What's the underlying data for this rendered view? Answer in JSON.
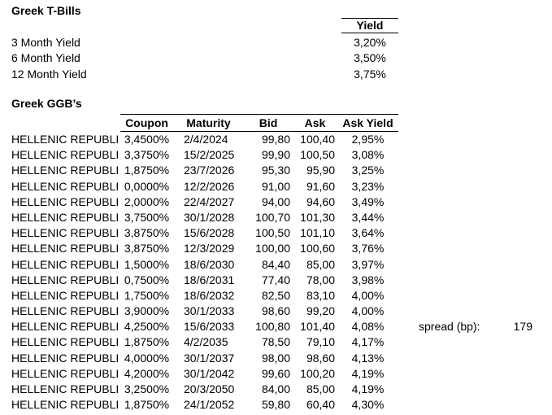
{
  "colors": {
    "text": "#000000",
    "background": "#ffffff",
    "border": "#000000"
  },
  "tbills": {
    "title": "Greek T-Bills",
    "yield_header": "Yield",
    "rows": [
      {
        "label": "3 Month Yield",
        "value": "3,20%"
      },
      {
        "label": "6 Month Yield",
        "value": "3,50%"
      },
      {
        "label": "12 Month Yield",
        "value": "3,75%"
      }
    ]
  },
  "ggbs": {
    "title": "Greek GGB’s",
    "columns": {
      "name": "",
      "coupon": "Coupon",
      "maturity": "Maturity",
      "bid": "Bid",
      "ask": "Ask",
      "ask_yield": "Ask Yield"
    },
    "rows": [
      {
        "name": "HELLENIC REPUBLI",
        "coupon": "3,4500%",
        "maturity": "2/4/2024",
        "bid": "99,80",
        "ask": "100,40",
        "ask_yield": "2,95%"
      },
      {
        "name": "HELLENIC REPUBLI",
        "coupon": "3,3750%",
        "maturity": "15/2/2025",
        "bid": "99,90",
        "ask": "100,50",
        "ask_yield": "3,08%"
      },
      {
        "name": "HELLENIC REPUBLI",
        "coupon": "1,8750%",
        "maturity": "23/7/2026",
        "bid": "95,30",
        "ask": "95,90",
        "ask_yield": "3,25%"
      },
      {
        "name": "HELLENIC REPUBLI",
        "coupon": "0,0000%",
        "maturity": "12/2/2026",
        "bid": "91,00",
        "ask": "91,60",
        "ask_yield": "3,23%"
      },
      {
        "name": "HELLENIC REPUBLI",
        "coupon": "2,0000%",
        "maturity": "22/4/2027",
        "bid": "94,00",
        "ask": "94,60",
        "ask_yield": "3,49%"
      },
      {
        "name": "HELLENIC REPUBLI",
        "coupon": "3,7500%",
        "maturity": "30/1/2028",
        "bid": "100,70",
        "ask": "101,30",
        "ask_yield": "3,44%"
      },
      {
        "name": "HELLENIC REPUBLI",
        "coupon": "3,8750%",
        "maturity": "15/6/2028",
        "bid": "100,50",
        "ask": "101,10",
        "ask_yield": "3,64%"
      },
      {
        "name": "HELLENIC REPUBLI",
        "coupon": "3,8750%",
        "maturity": "12/3/2029",
        "bid": "100,00",
        "ask": "100,60",
        "ask_yield": "3,76%"
      },
      {
        "name": "HELLENIC REPUBLI",
        "coupon": "1,5000%",
        "maturity": "18/6/2030",
        "bid": "84,40",
        "ask": "85,00",
        "ask_yield": "3,97%"
      },
      {
        "name": "HELLENIC REPUBLI",
        "coupon": "0,7500%",
        "maturity": "18/6/2031",
        "bid": "77,40",
        "ask": "78,00",
        "ask_yield": "3,98%"
      },
      {
        "name": "HELLENIC REPUBLI",
        "coupon": "1,7500%",
        "maturity": "18/6/2032",
        "bid": "82,50",
        "ask": "83,10",
        "ask_yield": "4,00%"
      },
      {
        "name": "HELLENIC REPUBLI",
        "coupon": "3,9000%",
        "maturity": "30/1/2033",
        "bid": "98,60",
        "ask": "99,20",
        "ask_yield": "4,00%"
      },
      {
        "name": "HELLENIC REPUBLI",
        "coupon": "4,2500%",
        "maturity": "15/6/2033",
        "bid": "100,80",
        "ask": "101,40",
        "ask_yield": "4,08%"
      },
      {
        "name": "HELLENIC REPUBLI",
        "coupon": "1,8750%",
        "maturity": "4/2/2035",
        "bid": "78,50",
        "ask": "79,10",
        "ask_yield": "4,17%"
      },
      {
        "name": "HELLENIC REPUBLI",
        "coupon": "4,0000%",
        "maturity": "30/1/2037",
        "bid": "98,00",
        "ask": "98,60",
        "ask_yield": "4,13%"
      },
      {
        "name": "HELLENIC REPUBLI",
        "coupon": "4,2000%",
        "maturity": "30/1/2042",
        "bid": "99,60",
        "ask": "100,20",
        "ask_yield": "4,19%"
      },
      {
        "name": "HELLENIC REPUBLI",
        "coupon": "3,2500%",
        "maturity": "20/3/2050",
        "bid": "84,00",
        "ask": "85,00",
        "ask_yield": "4,19%"
      },
      {
        "name": "HELLENIC REPUBLI",
        "coupon": "1,8750%",
        "maturity": "24/1/2052",
        "bid": "59,80",
        "ask": "60,40",
        "ask_yield": "4,30%"
      }
    ]
  },
  "spread": {
    "label": "spread (bp):",
    "value": "179"
  }
}
